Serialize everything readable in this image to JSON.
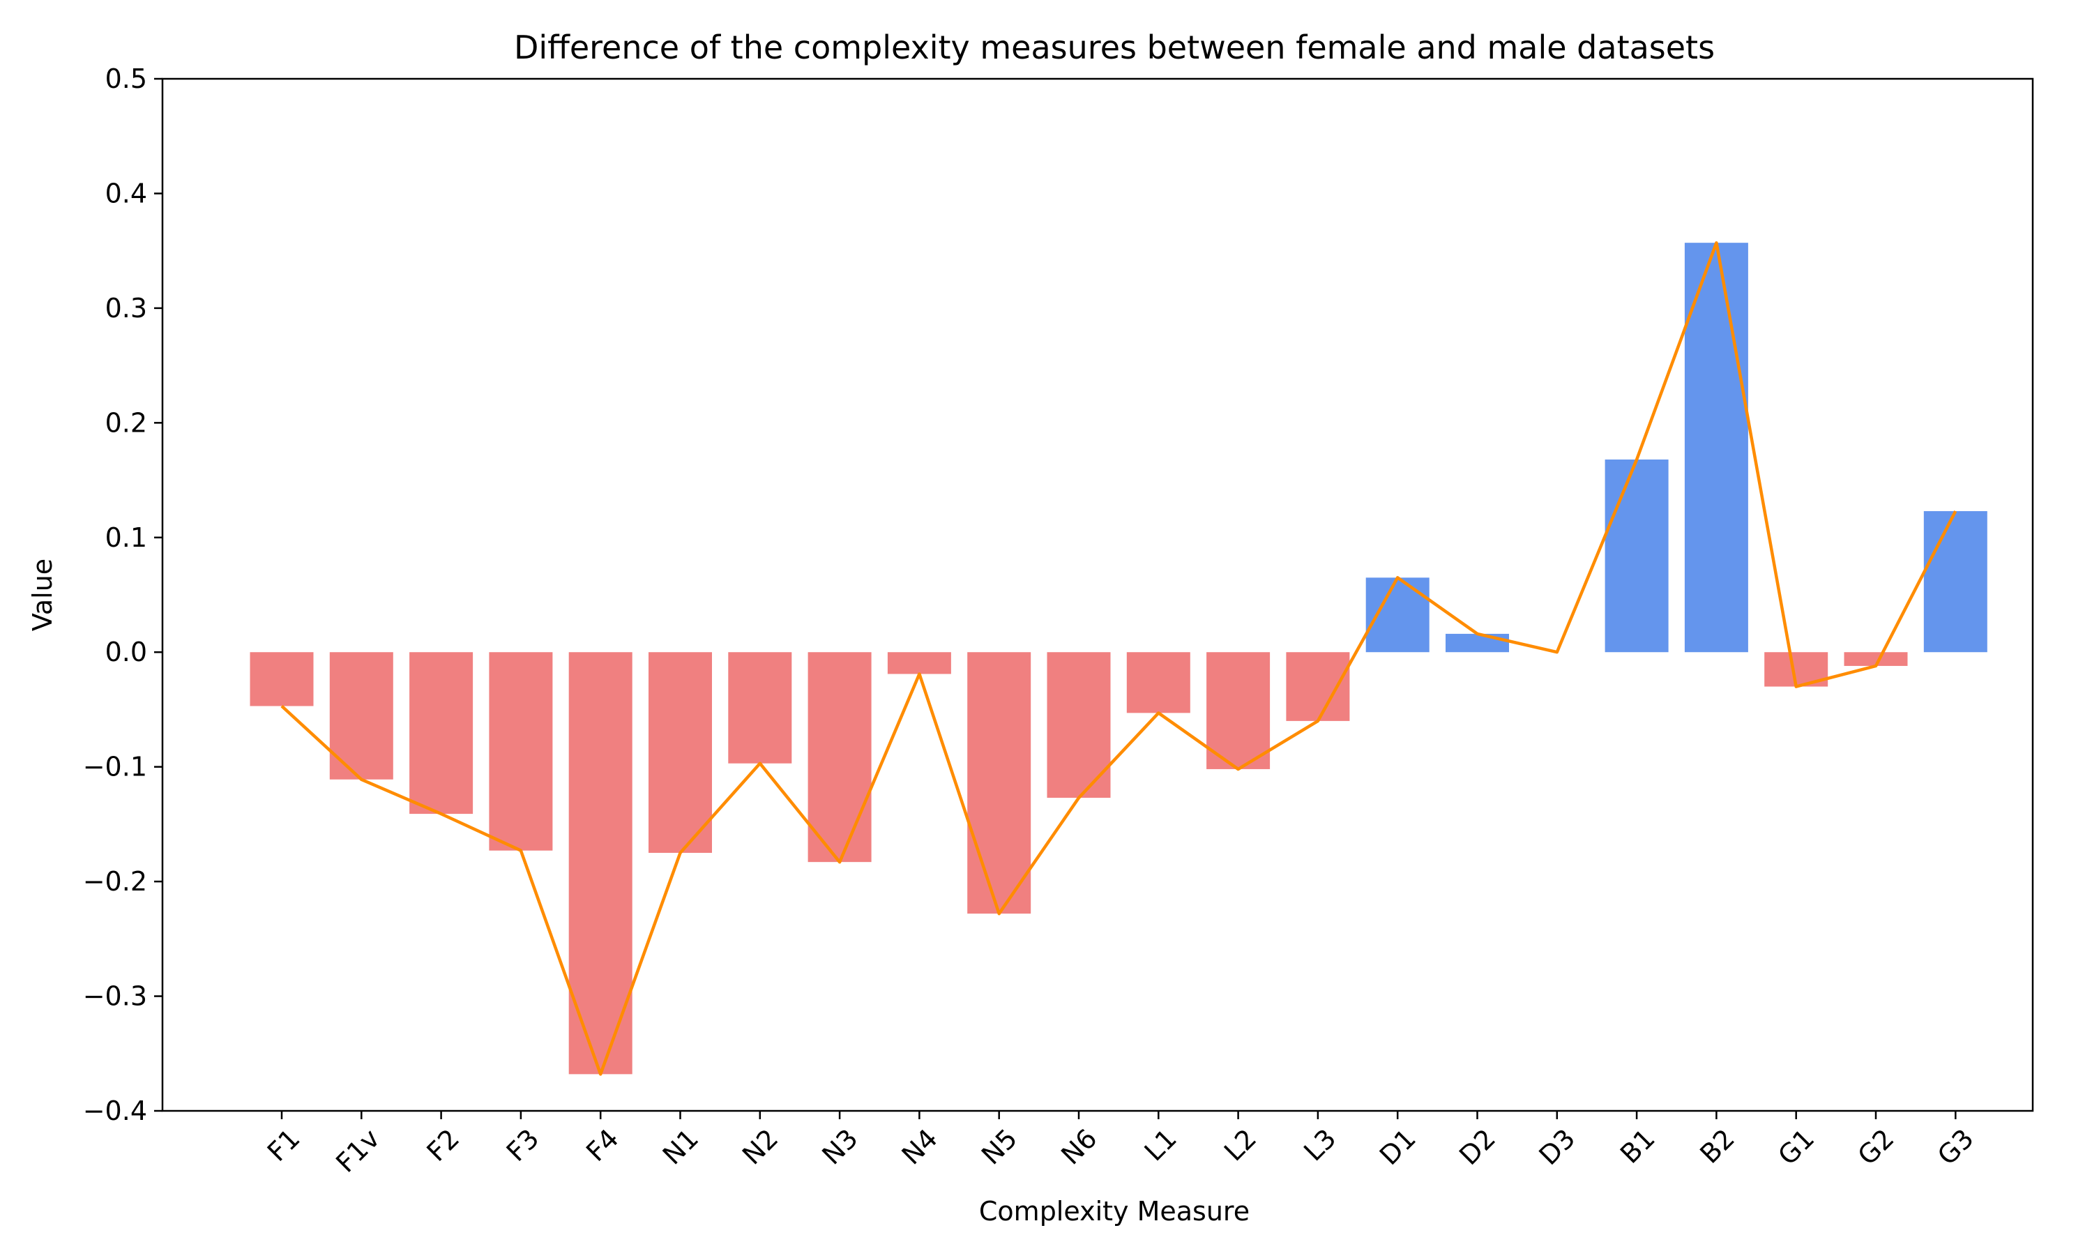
{
  "chart_data": {
    "type": "bar",
    "title": "Difference of the complexity measures between female and male datasets",
    "xlabel": "Complexity Measure",
    "ylabel": "Value",
    "ylim": [
      -0.4,
      0.5
    ],
    "yticks": [
      -0.4,
      -0.3,
      -0.2,
      -0.1,
      0.0,
      0.1,
      0.2,
      0.3,
      0.4,
      0.5
    ],
    "ytick_labels": [
      "−0.4",
      "−0.3",
      "−0.2",
      "−0.1",
      "0.0",
      "0.1",
      "0.2",
      "0.3",
      "0.4",
      "0.5"
    ],
    "categories": [
      "F1",
      "F1v",
      "F2",
      "F3",
      "F4",
      "N1",
      "N2",
      "N3",
      "N4",
      "N5",
      "N6",
      "L1",
      "L2",
      "L3",
      "D1",
      "D2",
      "D3",
      "B1",
      "B2",
      "G1",
      "G2",
      "G3"
    ],
    "values": [
      -0.047,
      -0.111,
      -0.141,
      -0.173,
      -0.368,
      -0.175,
      -0.097,
      -0.183,
      -0.019,
      -0.228,
      -0.127,
      -0.053,
      -0.102,
      -0.06,
      0.065,
      0.016,
      0.0,
      0.168,
      0.357,
      -0.03,
      -0.012,
      0.123
    ],
    "grid": false,
    "overlay_line": true,
    "colors": {
      "positive_bar": "#6495ED",
      "negative_bar": "#F08080",
      "line": "#FF8C00",
      "axis": "#000000",
      "background": "#FFFFFF"
    }
  }
}
